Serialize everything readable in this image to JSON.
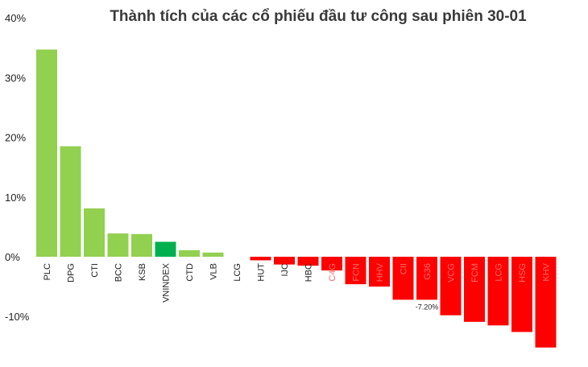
{
  "chart_data": {
    "type": "bar",
    "title": "Thành tích của các cổ phiếu đầu tư công sau phiên 30-01",
    "xlabel": "",
    "ylabel": "",
    "ylim": [
      -17,
      40
    ],
    "y_ticks": [
      "40%",
      "30%",
      "20%",
      "10%",
      "0%",
      "-10%"
    ],
    "y_tick_values": [
      40,
      30,
      20,
      10,
      0,
      -10
    ],
    "categories": [
      "PLC",
      "DPG",
      "CTI",
      "BCC",
      "KSB",
      "VNINDEX",
      "CTD",
      "VLB",
      "LCG",
      "HUT",
      "IJC",
      "HBC",
      "C4G",
      "FCN",
      "HHV",
      "CII",
      "G36",
      "VCG",
      "FCM",
      "LCG",
      "HSG",
      "KHV"
    ],
    "values": [
      34.7,
      18.5,
      8.1,
      3.9,
      3.8,
      2.5,
      1.1,
      0.7,
      0.0,
      -0.6,
      -1.3,
      -1.5,
      -2.3,
      -4.6,
      -5.0,
      -7.2,
      -7.2,
      -9.8,
      -10.9,
      -11.5,
      -12.6,
      -15.2
    ],
    "value_labels": [
      "",
      "",
      "",
      "",
      "",
      "",
      "",
      "",
      "",
      "",
      "",
      "",
      "",
      "",
      "",
      "",
      "-7.20%",
      "",
      "",
      "",
      "",
      ""
    ],
    "bar_colors": [
      "#92d050",
      "#92d050",
      "#92d050",
      "#92d050",
      "#92d050",
      "#00b050",
      "#92d050",
      "#92d050",
      "#92d050",
      "#ff0000",
      "#ff0000",
      "#ff0000",
      "#ff0000",
      "#ff0000",
      "#ff0000",
      "#ff0000",
      "#ff0000",
      "#ff0000",
      "#ff0000",
      "#ff0000",
      "#ff0000",
      "#ff0000"
    ],
    "grid": false,
    "legend": "none"
  }
}
